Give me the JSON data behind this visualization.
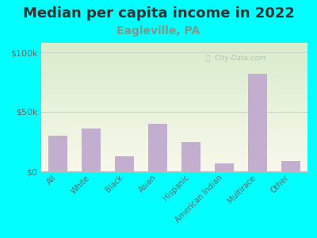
{
  "title": "Median per capita income in 2022",
  "subtitle": "Eagleville, PA",
  "categories": [
    "All",
    "White",
    "Black",
    "Asian",
    "Hispanic",
    "American Indian",
    "Multirace",
    "Other"
  ],
  "values": [
    30000,
    36000,
    13000,
    40000,
    25000,
    7000,
    82000,
    9000
  ],
  "bar_color": "#c4aed0",
  "background_outer": "#00ffff",
  "title_color": "#333333",
  "subtitle_color": "#7a9a8a",
  "tick_color": "#666666",
  "ytick_labels": [
    "$0",
    "$50k",
    "$100k"
  ],
  "ytick_values": [
    0,
    50000,
    100000
  ],
  "ylim": [
    0,
    108000
  ],
  "watermark": "ⓘ  City-Data.com",
  "title_fontsize": 13,
  "subtitle_fontsize": 10,
  "grad_color_top": "#d8edcc",
  "grad_color_bottom": "#f8f8ec"
}
